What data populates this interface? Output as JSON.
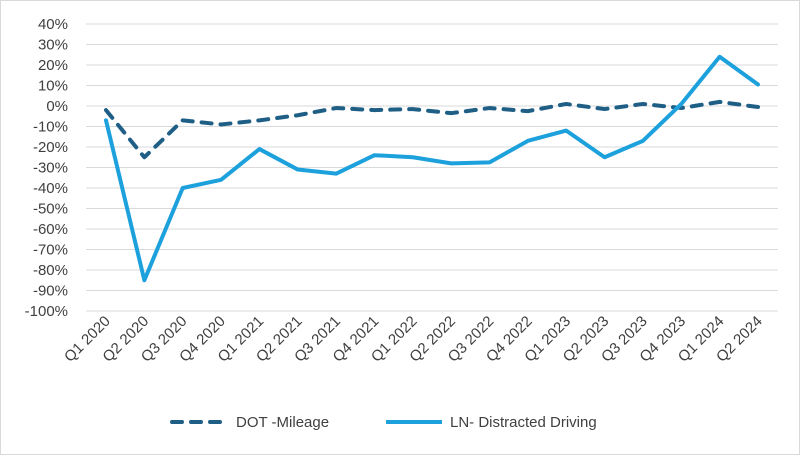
{
  "chart_data": {
    "type": "line",
    "title": "",
    "xlabel": "",
    "ylabel": "",
    "categories": [
      "Q1 2020",
      "Q2 2020",
      "Q3 2020",
      "Q4 2020",
      "Q1 2021",
      "Q2 2021",
      "Q3 2021",
      "Q4 2021",
      "Q1 2022",
      "Q2 2022",
      "Q3 2022",
      "Q4 2022",
      "Q1 2023",
      "Q2 2023",
      "Q3 2023",
      "Q4 2023",
      "Q1 2024",
      "Q2 2024"
    ],
    "ylim": [
      -100,
      40
    ],
    "yticks": [
      "40%",
      "30%",
      "20%",
      "10%",
      "0%",
      "-10%",
      "-20%",
      "-30%",
      "-40%",
      "-50%",
      "-60%",
      "-70%",
      "-80%",
      "-90%",
      "-100%"
    ],
    "grid": true,
    "legend": "bottom",
    "series": [
      {
        "name": "DOT -Mileage",
        "color": "#1f5f86",
        "style": "dashed",
        "values": [
          -2,
          -25,
          -7,
          -9,
          -7,
          -4.5,
          -1,
          -2,
          -1.5,
          -3.5,
          -1,
          -2.5,
          1,
          -1.5,
          1,
          -1,
          2,
          -0.5
        ]
      },
      {
        "name": "LN- Distracted Driving",
        "color": "#1da1dc",
        "style": "solid",
        "values": [
          -7,
          -85,
          -40,
          -36,
          -21,
          -31,
          -33,
          -24,
          -25,
          -28,
          -27.5,
          -17,
          -12,
          -25,
          -17,
          1,
          24,
          10.5
        ]
      }
    ]
  }
}
